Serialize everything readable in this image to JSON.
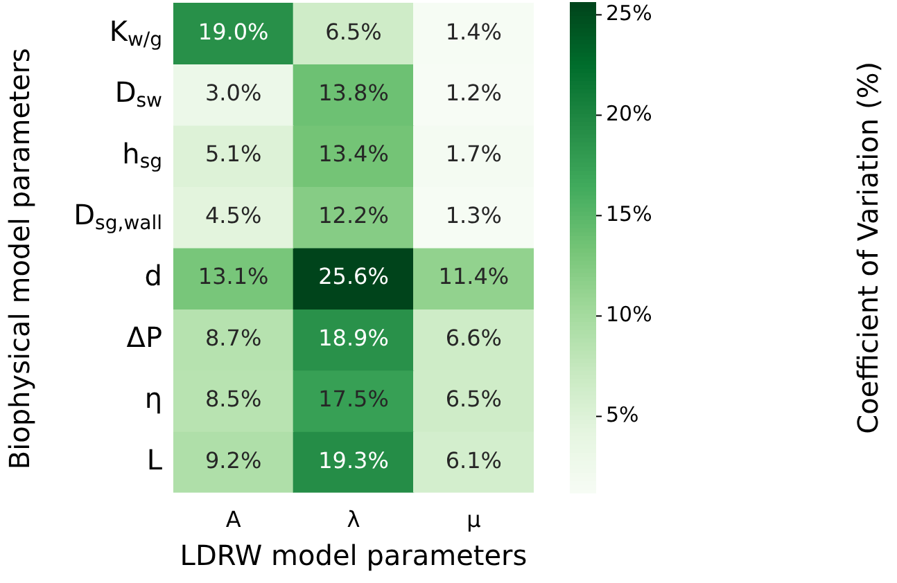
{
  "chart_data": {
    "type": "heatmap",
    "xlabel": "LDRW model parameters",
    "ylabel": "Biophysical model parameters",
    "clabel": "Coefficient of Variation (%)",
    "categories": [
      "A",
      "λ",
      "μ"
    ],
    "y_categories": [
      "K$_{w/g}$",
      "D$_{sw}$",
      "h$_{sg}$",
      "D$_{sg,wall}$",
      "d",
      "ΔP",
      "η",
      "L"
    ],
    "cells": [
      [
        19.0,
        6.5,
        1.4
      ],
      [
        3.0,
        13.8,
        1.2
      ],
      [
        5.1,
        13.4,
        1.7
      ],
      [
        4.5,
        12.2,
        1.3
      ],
      [
        13.1,
        25.6,
        11.4
      ],
      [
        8.7,
        18.9,
        6.6
      ],
      [
        8.5,
        17.5,
        6.5
      ],
      [
        9.2,
        19.3,
        6.1
      ]
    ],
    "cell_labels": [
      [
        "19.0%",
        "6.5%",
        "1.4%"
      ],
      [
        "3.0%",
        "13.8%",
        "1.2%"
      ],
      [
        "5.1%",
        "13.4%",
        "1.7%"
      ],
      [
        "4.5%",
        "12.2%",
        "1.3%"
      ],
      [
        "13.1%",
        "25.6%",
        "11.4%"
      ],
      [
        "8.7%",
        "18.9%",
        "6.6%"
      ],
      [
        "8.5%",
        "17.5%",
        "6.5%"
      ],
      [
        "9.2%",
        "19.3%",
        "6.1%"
      ]
    ],
    "clim": [
      1.2,
      25.6
    ],
    "cticks": [
      {
        "value": 5,
        "label": "5%"
      },
      {
        "value": 10,
        "label": "10%"
      },
      {
        "value": 15,
        "label": "15%"
      },
      {
        "value": 20,
        "label": "20%"
      },
      {
        "value": 25,
        "label": "25%"
      }
    ]
  }
}
